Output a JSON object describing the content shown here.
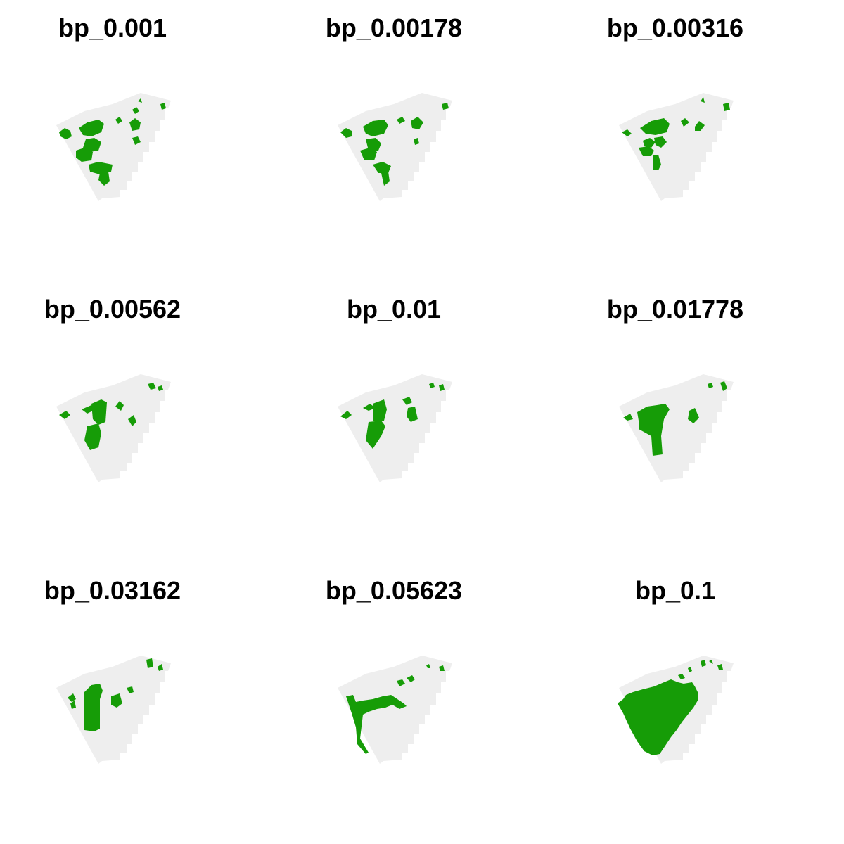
{
  "figure": {
    "background_color": "#EEEEEE",
    "selected_color": "#169C07",
    "page_color": "#FFFFFF"
  },
  "panels": [
    {
      "title": "bp_0.001",
      "level": 0
    },
    {
      "title": "bp_0.00178",
      "level": 1
    },
    {
      "title": "bp_0.00316",
      "level": 2
    },
    {
      "title": "bp_0.00562",
      "level": 3
    },
    {
      "title": "bp_0.01",
      "level": 4
    },
    {
      "title": "bp_0.01778",
      "level": 5
    },
    {
      "title": "bp_0.03162",
      "level": 6
    },
    {
      "title": "bp_0.05623",
      "level": 7
    },
    {
      "title": "bp_0.1",
      "level": 8
    }
  ]
}
